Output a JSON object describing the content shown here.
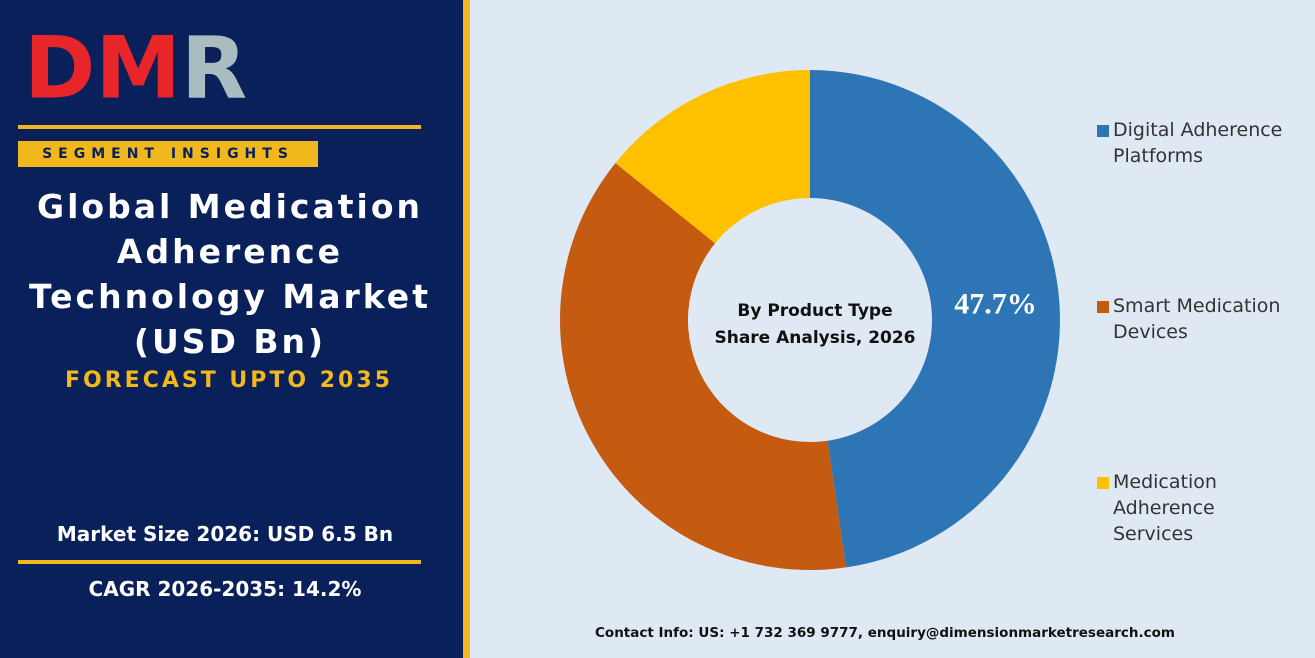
{
  "panel": {
    "logo": "DMR",
    "badge": "SEGMENT INSIGHTS",
    "title": "Global Medication Adherence Technology Market (USD Bn)",
    "forecast": "FORECAST UPTO 2035",
    "market_size": "Market Size 2026: USD 6.5 Bn",
    "cagr": "CAGR 2026-2035: 14.2%"
  },
  "chart_data": {
    "type": "donut",
    "title": "By Product Type",
    "subtitle": "Share Analysis, 2026",
    "categories": [
      "Digital Adherence Platforms",
      "Smart Medication Devices",
      "Medication Adherence Services"
    ],
    "values": [
      47.7,
      38.1,
      14.2
    ],
    "value_labels": [
      "47.7%",
      null,
      null
    ],
    "colors": [
      "#2e75b6",
      "#c55a11",
      "#ffc000"
    ],
    "legend": "right"
  },
  "footer": {
    "contact": "Contact Info: US: +1 732 369 9777, enquiry@dimensionmarketresearch.com"
  }
}
